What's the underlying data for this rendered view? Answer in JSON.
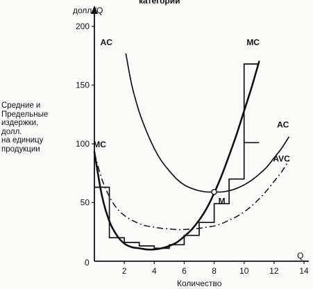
{
  "header": {
    "cut_text": "категории"
  },
  "side_label": [
    "Средние и",
    "Предельные",
    "издержки,",
    "долл.",
    "на единицу",
    "продукции"
  ],
  "chart_data": {
    "type": "line",
    "title": "",
    "xlabel": "Количество",
    "xlabel_end": "Q",
    "ylabel": "долл./Q",
    "xlim": [
      0,
      14
    ],
    "ylim": [
      0,
      200
    ],
    "x_ticks": [
      2,
      4,
      6,
      8,
      10,
      12,
      14
    ],
    "y_ticks": [
      50,
      100,
      150,
      200
    ],
    "origin_label": "0",
    "grid": false,
    "legend": "none",
    "point": {
      "label": "M",
      "x": 8,
      "y": 59
    },
    "series": [
      {
        "name": "MC",
        "style": "solid-thick",
        "x": [
          0.0,
          0.5,
          1.0,
          1.5,
          2.0,
          2.5,
          3.0,
          3.5,
          4.0,
          4.5,
          5.0,
          5.5,
          6.0,
          6.5,
          7.0,
          7.5,
          8.0,
          8.5,
          9.0,
          9.5,
          10.0,
          10.5,
          11.0
        ],
        "y": [
          93,
          56,
          34,
          22,
          15,
          12,
          11,
          10,
          10,
          11,
          13,
          16,
          21,
          27,
          35,
          45,
          58,
          73,
          90,
          108,
          128,
          148,
          170
        ]
      },
      {
        "name": "AC",
        "style": "solid",
        "x": [
          2.1,
          2.5,
          3.0,
          3.5,
          4.0,
          4.5,
          5.0,
          5.5,
          6.0,
          6.5,
          7.0,
          7.5,
          8.0,
          8.5,
          9.0,
          9.5,
          10.0,
          10.5,
          11.0,
          11.5,
          12.0,
          12.5,
          13.0
        ],
        "y": [
          177,
          150,
          127,
          110,
          96,
          85,
          77,
          70,
          65,
          62,
          60,
          59,
          59,
          59,
          60,
          62,
          65,
          69,
          74,
          80,
          88,
          96,
          106
        ]
      },
      {
        "name": "AVC",
        "style": "dash-dot",
        "x": [
          0.0,
          0.5,
          1.0,
          1.5,
          2.0,
          2.5,
          3.0,
          3.5,
          4.0,
          4.5,
          5.0,
          5.5,
          6.0,
          6.5,
          7.0,
          7.5,
          8.0,
          8.5,
          9.0,
          9.5,
          10.0,
          10.5,
          11.0,
          11.5,
          12.0,
          12.5,
          13.0
        ],
        "y": [
          92,
          70,
          55,
          45,
          39,
          35,
          32,
          30,
          29,
          28,
          27.5,
          27,
          27,
          27.5,
          28,
          29,
          30,
          32,
          35,
          38,
          42,
          47,
          53,
          60,
          68,
          76,
          86
        ]
      },
      {
        "name": "",
        "style": "step",
        "x": [
          0,
          1,
          1,
          2,
          2,
          3,
          3,
          4,
          4,
          5,
          5,
          6,
          6,
          7,
          7,
          8,
          8,
          9,
          9,
          10,
          10,
          11
        ],
        "y": [
          63,
          63,
          20,
          20,
          16,
          16,
          13,
          13,
          11,
          11,
          14,
          14,
          22,
          22,
          33,
          33,
          49,
          49,
          70,
          70,
          101,
          101
        ]
      },
      {
        "name": "",
        "style": "step",
        "x": [
          10.0,
          10.0,
          11.0
        ],
        "y": [
          101,
          168,
          168
        ]
      }
    ],
    "annotations": [
      {
        "text": "MC",
        "x": 0.35,
        "y": 97
      },
      {
        "text": "AC",
        "x": 0.8,
        "y": 184
      },
      {
        "text": "MC",
        "x": 10.6,
        "y": 184
      },
      {
        "text": "AC",
        "x": 12.6,
        "y": 114
      },
      {
        "text": "AVC",
        "x": 12.5,
        "y": 85
      }
    ]
  }
}
